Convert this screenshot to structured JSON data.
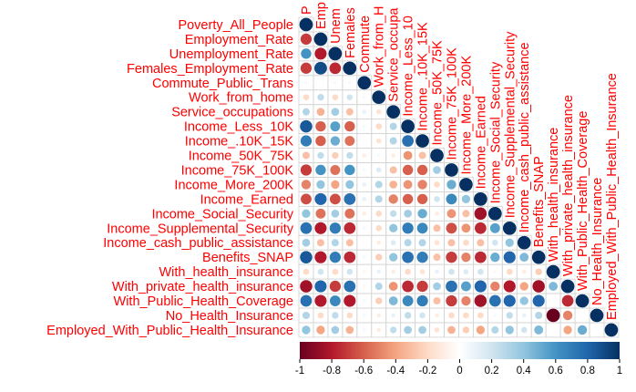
{
  "chart_data": {
    "type": "heatmap",
    "shape": "lower-triangle",
    "glyph": "circle",
    "labels": [
      "Poverty_All_People",
      "Employment_Rate",
      "Unemployment_Rate",
      "Females_Employment_Rate",
      "Commute_Public_Trans",
      "Work_from_home",
      "Service_occupations",
      "Income_Less_10K",
      "Income_.10K_15K",
      "Income_50K_75K",
      "Income_75K_100K",
      "Income_More_200K",
      "Income_Earned",
      "Income_Social_Security",
      "Income_Supplemental_Security",
      "Income_cash_public_assistance",
      "Benefits_SNAP",
      "With_health_insurance",
      "With_private_health_insurance",
      "With_Public_Health_Coverage",
      "No_Health_Insurance",
      "Employed_With_Public_Health_Insurance"
    ],
    "top_labels": [
      "P",
      "Emp",
      "Unem",
      "Females",
      "Commute",
      "Work_from_H",
      "Service_occupa",
      "Income_Less_10",
      "Income_.10K_15K",
      "Income_50K_75K",
      "Income_75K_100K",
      "Income_More_200K",
      "Income_Earned",
      "Income_Social_Security",
      "Income_Supplemental_Security",
      "Income_cash_public_assistance",
      "Benefits_SNAP",
      "With_health_insurance",
      "With_private_health_insurance",
      "With_Public_Health_Coverage",
      "No_Health_Insurance",
      "Employed_With_Public_Health_Insurance"
    ],
    "matrix": [
      [
        1
      ],
      [
        -0.7,
        1
      ],
      [
        0.6,
        -0.8,
        1
      ],
      [
        -0.7,
        0.9,
        -0.75,
        1
      ],
      [
        0.05,
        0.0,
        0.05,
        0.05,
        1
      ],
      [
        -0.2,
        0.25,
        -0.2,
        0.2,
        0.05,
        1
      ],
      [
        0.3,
        -0.35,
        0.35,
        -0.3,
        0.1,
        -0.15,
        1
      ],
      [
        0.85,
        -0.6,
        0.55,
        -0.6,
        0.05,
        -0.2,
        0.3,
        1
      ],
      [
        0.7,
        -0.6,
        0.5,
        -0.55,
        0.0,
        -0.15,
        0.3,
        0.75,
        1
      ],
      [
        -0.3,
        0.25,
        -0.25,
        0.25,
        -0.1,
        0.05,
        -0.1,
        -0.45,
        -0.3,
        1
      ],
      [
        -0.7,
        0.6,
        -0.55,
        0.6,
        0.05,
        0.15,
        -0.3,
        -0.6,
        -0.6,
        0.35,
        1
      ],
      [
        -0.5,
        0.4,
        -0.4,
        0.4,
        0.1,
        0.3,
        -0.35,
        -0.45,
        -0.5,
        -0.2,
        0.5,
        1
      ],
      [
        -0.65,
        0.8,
        -0.65,
        0.75,
        0.1,
        0.3,
        -0.5,
        -0.6,
        -0.6,
        0.2,
        0.65,
        0.4,
        1
      ],
      [
        0.4,
        -0.55,
        0.35,
        -0.55,
        -0.1,
        -0.2,
        0.25,
        0.35,
        0.5,
        -0.1,
        -0.45,
        -0.3,
        -0.85,
        1
      ],
      [
        0.75,
        -0.8,
        0.7,
        -0.75,
        0.05,
        -0.2,
        0.4,
        0.7,
        0.65,
        -0.3,
        -0.65,
        -0.45,
        -0.75,
        0.55,
        1
      ],
      [
        0.35,
        -0.3,
        0.3,
        -0.3,
        0.0,
        -0.1,
        0.15,
        0.3,
        0.3,
        -0.15,
        -0.3,
        -0.2,
        -0.3,
        0.2,
        0.4,
        1
      ],
      [
        0.85,
        -0.8,
        0.7,
        -0.75,
        0.05,
        -0.25,
        0.4,
        0.75,
        0.7,
        -0.3,
        -0.7,
        -0.5,
        -0.75,
        0.5,
        0.8,
        0.45,
        1
      ],
      [
        -0.2,
        0.2,
        -0.2,
        0.2,
        -0.05,
        0.1,
        -0.1,
        -0.2,
        -0.15,
        0.1,
        0.2,
        0.15,
        0.2,
        -0.05,
        -0.2,
        -0.1,
        -0.25,
        1
      ],
      [
        -0.85,
        0.8,
        -0.7,
        0.75,
        -0.05,
        0.3,
        -0.45,
        -0.75,
        -0.7,
        0.35,
        0.75,
        0.55,
        0.8,
        -0.5,
        -0.8,
        -0.4,
        -0.85,
        0.45,
        1
      ],
      [
        0.75,
        -0.8,
        0.65,
        -0.8,
        0.05,
        -0.25,
        0.45,
        0.65,
        0.7,
        -0.3,
        -0.7,
        -0.5,
        -0.85,
        0.75,
        0.8,
        0.4,
        0.8,
        0.0,
        -0.75,
        1
      ],
      [
        0.3,
        -0.2,
        0.25,
        -0.2,
        0.05,
        -0.1,
        0.1,
        0.25,
        0.2,
        -0.1,
        -0.2,
        -0.2,
        -0.2,
        0.05,
        0.25,
        0.1,
        0.3,
        -1.0,
        -0.5,
        0.0,
        1
      ],
      [
        0.4,
        -0.4,
        0.35,
        -0.35,
        0.05,
        -0.1,
        0.25,
        0.35,
        0.35,
        -0.15,
        -0.35,
        -0.25,
        -0.4,
        0.3,
        0.4,
        0.2,
        0.45,
        0.0,
        -0.4,
        0.5,
        0.0,
        1
      ]
    ],
    "colorbar": {
      "range": [
        -1,
        1
      ],
      "ticks": [
        "-1",
        "-0.8",
        "-0.6",
        "-0.4",
        "-0.2",
        "0",
        "0.2",
        "0.4",
        "0.6",
        "0.8",
        "1"
      ]
    },
    "colors": {
      "negative_end": "#67001f",
      "positive_end": "#053061",
      "zero": "#ffffff",
      "label": "#ff0000",
      "grid": "#d3d3d3"
    },
    "grid": true
  }
}
